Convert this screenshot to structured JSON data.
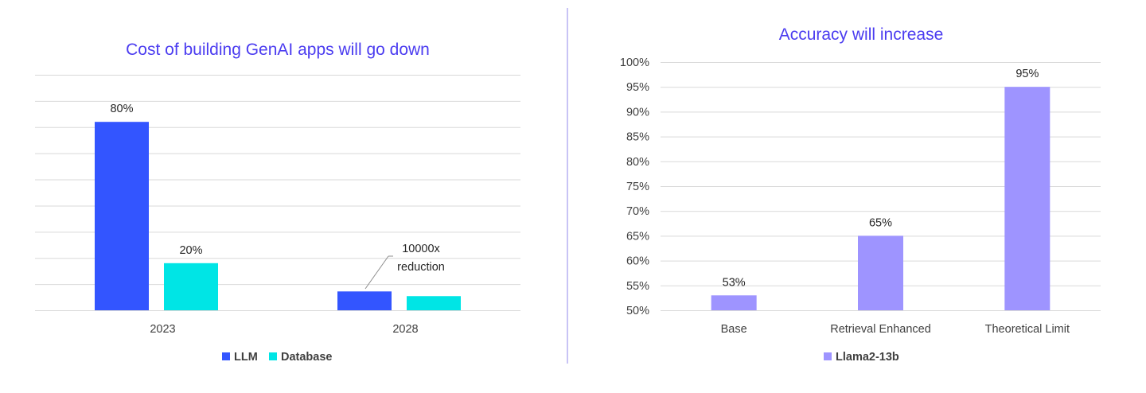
{
  "colors": {
    "title": "#4B3CF0",
    "llm": "#3355FF",
    "database": "#00E5E5",
    "llama": "#9E94FF",
    "grid": "#D9D9D9",
    "divider": "#C8C4F5"
  },
  "chart_data": [
    {
      "type": "bar",
      "title": "Cost of building GenAI apps will go down",
      "categories": [
        "2023",
        "2028"
      ],
      "series": [
        {
          "name": "LLM",
          "values": [
            80,
            8
          ]
        },
        {
          "name": "Database",
          "values": [
            20,
            6
          ]
        }
      ],
      "data_labels": {
        "LLM": [
          "80%",
          ""
        ],
        "Database": [
          "20%",
          ""
        ]
      },
      "annotation": {
        "line1": "10000x",
        "line2": "reduction"
      },
      "ylim": [
        0,
        100
      ],
      "y_tick_labels_visible": false,
      "grid": true,
      "legend": "bottom"
    },
    {
      "type": "bar",
      "title": "Accuracy will increase",
      "categories": [
        "Base",
        "Retrieval Enhanced",
        "Theoretical Limit"
      ],
      "series": [
        {
          "name": "Llama2-13b",
          "values": [
            53,
            65,
            95
          ]
        }
      ],
      "data_labels": [
        "53%",
        "65%",
        "95%"
      ],
      "ylim": [
        50,
        100
      ],
      "y_ticks": [
        50,
        55,
        60,
        65,
        70,
        75,
        80,
        85,
        90,
        95,
        100
      ],
      "y_tick_labels": [
        "50%",
        "55%",
        "60%",
        "65%",
        "70%",
        "75%",
        "80%",
        "85%",
        "90%",
        "95%",
        "100%"
      ],
      "grid": true,
      "legend": "bottom"
    }
  ]
}
